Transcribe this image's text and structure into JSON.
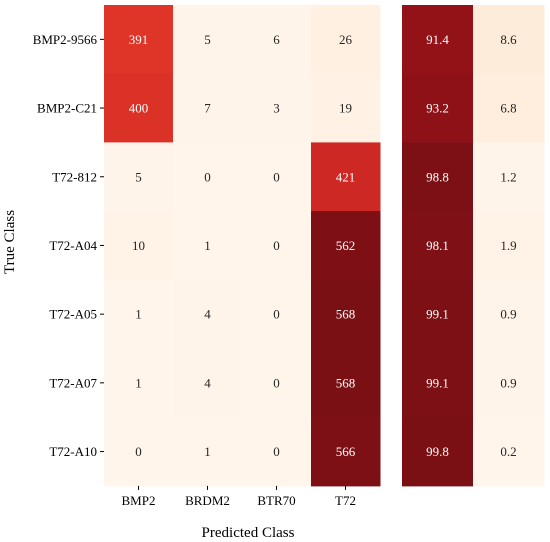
{
  "chart_data": {
    "type": "heatmap",
    "xlabel": "Predicted Class",
    "ylabel": "True Class",
    "rows": [
      "BMP2-9566",
      "BMP2-C21",
      "T72-812",
      "T72-A04",
      "T72-A05",
      "T72-A07",
      "T72-A10"
    ],
    "columns": [
      "BMP2",
      "BRDM2",
      "BTR70",
      "T72"
    ],
    "values": [
      [
        391,
        5,
        6,
        26
      ],
      [
        400,
        7,
        3,
        19
      ],
      [
        5,
        0,
        0,
        421
      ],
      [
        10,
        1,
        0,
        562
      ],
      [
        1,
        4,
        0,
        568
      ],
      [
        1,
        4,
        0,
        568
      ],
      [
        0,
        1,
        0,
        566
      ]
    ],
    "value_range": [
      0,
      570
    ],
    "percent_columns": [
      [
        91.4,
        8.6
      ],
      [
        93.2,
        6.8
      ],
      [
        98.8,
        1.2
      ],
      [
        98.1,
        1.9
      ],
      [
        99.1,
        0.9
      ],
      [
        99.1,
        0.9
      ],
      [
        99.8,
        0.2
      ]
    ],
    "percent_range": [
      0,
      100
    ],
    "colormap": "Reds",
    "colors": {
      "low": "#fff5eb",
      "high": "#7a1010"
    }
  }
}
